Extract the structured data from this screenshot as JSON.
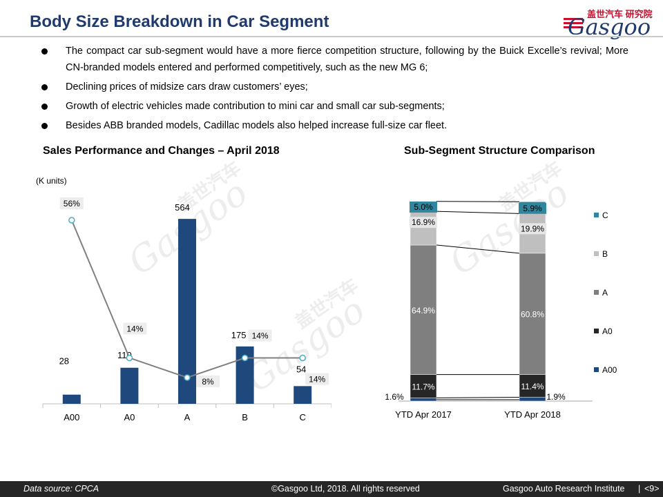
{
  "header": {
    "title": "Body Size Breakdown in Car Segment",
    "logo_cn_a": "盖世汽车",
    "logo_cn_b": "研究院",
    "logo": "Gasgoo"
  },
  "bullets": [
    "The compact car sub-segment would have a more fierce competition structure, following by the Buick Excelle’s revival; More CN-branded models entered and performed competitively, such as the new MG 6;",
    "Declining prices of midsize cars draw customers’ eyes;",
    "Growth of electric vehicles made contribution to mini car and small car sub-segments;",
    "Besides ABB branded models, Cadillac models also helped increase full-size car fleet."
  ],
  "left_chart": {
    "title": "Sales Performance and Changes – April 2018",
    "unit": "(K units)"
  },
  "right_chart": {
    "title": "Sub-Segment Structure Comparison"
  },
  "watermark": {
    "cn": "盖世汽车",
    "en": "Gasgoo"
  },
  "footer": {
    "source": "Data source: CPCA",
    "copyright": "©Gasgoo Ltd, 2018.  All rights reserved",
    "institute": "Gasgoo Auto Research Institute",
    "page": "<9>"
  },
  "colors": {
    "bar": "#1f497d",
    "line": "#808080",
    "marker": "#4bacc6",
    "A00": "#1f497d",
    "A0": "#262626",
    "A": "#7f7f7f",
    "B": "#bfbfbf",
    "C": "#31859c"
  },
  "chart_data": [
    {
      "type": "bar",
      "categories": [
        "A00",
        "A0",
        "A",
        "B",
        "C"
      ],
      "series": [
        {
          "name": "",
          "values": [
            28,
            110,
            564,
            175,
            54
          ]
        },
        {
          "name": "",
          "values": [
            56,
            14,
            8,
            14,
            14
          ]
        }
      ],
      "value_labels": [
        "28",
        "110",
        "564",
        "175",
        "54"
      ],
      "change_labels": [
        "56%",
        "14%",
        "8%",
        "14%",
        "14%"
      ],
      "ylabel": "(K units)",
      "ylim": [
        0,
        600
      ],
      "change_ylim": [
        0,
        0.6
      ],
      "grid": false
    },
    {
      "type": "bar",
      "stacked": true,
      "percent": true,
      "categories": [
        "YTD Apr 2017",
        "YTD Apr 2018"
      ],
      "series": [
        {
          "name": "A00",
          "values": [
            1.6,
            1.9
          ],
          "labels": [
            "1.6%",
            "1.9%"
          ]
        },
        {
          "name": "A0",
          "values": [
            11.7,
            11.4
          ],
          "labels": [
            "11.7%",
            "11.4%"
          ]
        },
        {
          "name": "A",
          "values": [
            64.9,
            60.8
          ],
          "labels": [
            "64.9%",
            "60.8%"
          ]
        },
        {
          "name": "B",
          "values": [
            16.9,
            19.9
          ],
          "labels": [
            "16.9%",
            "19.9%"
          ]
        },
        {
          "name": "C",
          "values": [
            5.0,
            5.9
          ],
          "labels": [
            "5.0%",
            "5.9%"
          ]
        }
      ],
      "legend_order": [
        "C",
        "B",
        "A",
        "A0",
        "A00"
      ],
      "legend": "right",
      "ylim": [
        0,
        100
      ],
      "grid": false
    }
  ]
}
